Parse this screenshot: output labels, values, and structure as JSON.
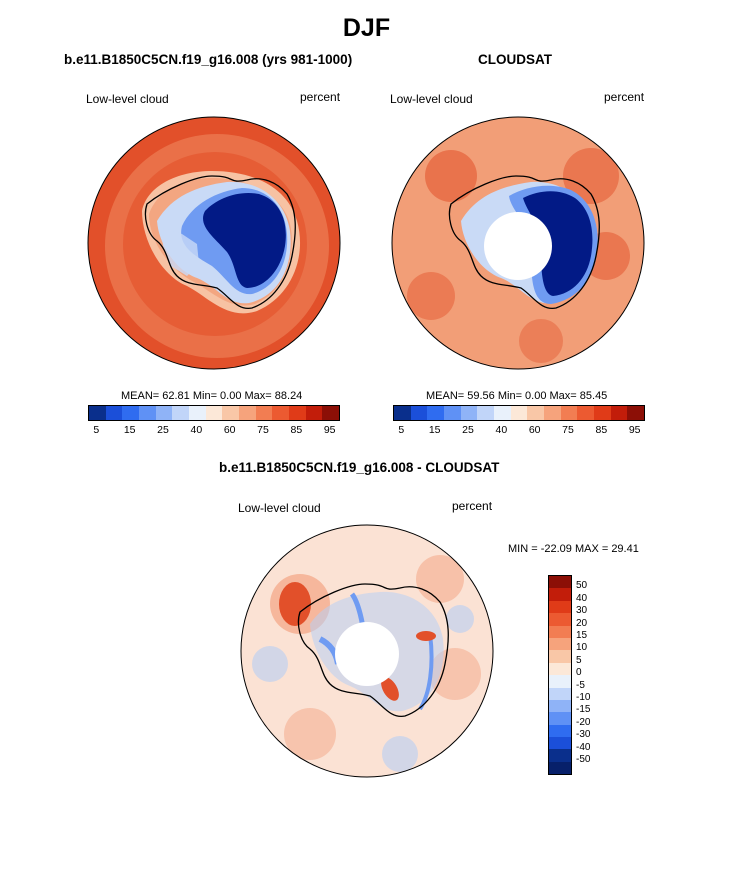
{
  "title": "DJF",
  "plots": [
    {
      "title": "b.e11.B1850C5CN.f19_g16.008 (yrs 981-1000)",
      "variable": "Low-level cloud",
      "units": "percent",
      "stats": "MEAN= 62.81  Min=  0.00  Max= 88.24",
      "colorbar_labels": [
        "5",
        "15",
        "25",
        "40",
        "60",
        "75",
        "85",
        "95"
      ],
      "colorbar_colors": [
        "#0a2f8c",
        "#1b4fd9",
        "#2f6cf0",
        "#5f91f5",
        "#8fb3f7",
        "#c1d5f9",
        "#e9f1fb",
        "#fce8d8",
        "#f9c7a7",
        "#f6a37c",
        "#f27d52",
        "#ec5a31",
        "#e03b18",
        "#c21d0a",
        "#8c0f06"
      ]
    },
    {
      "title": "CLOUDSAT",
      "variable": "Low-level cloud",
      "units": "percent",
      "stats": "MEAN= 59.56  Min=  0.00  Max= 85.45",
      "colorbar_labels": [
        "5",
        "15",
        "25",
        "40",
        "60",
        "75",
        "85",
        "95"
      ],
      "colorbar_colors": [
        "#0a2f8c",
        "#1b4fd9",
        "#2f6cf0",
        "#5f91f5",
        "#8fb3f7",
        "#c1d5f9",
        "#e9f1fb",
        "#fce8d8",
        "#f9c7a7",
        "#f6a37c",
        "#f27d52",
        "#ec5a31",
        "#e03b18",
        "#c21d0a",
        "#8c0f06"
      ]
    },
    {
      "title": "b.e11.B1850C5CN.f19_g16.008 - CLOUDSAT",
      "variable": "Low-level cloud",
      "units": "percent",
      "stats": "MIN = -22.09 MAX =  29.41",
      "colorbar_labels": [
        "50",
        "40",
        "30",
        "20",
        "15",
        "10",
        "5",
        "0",
        "-5",
        "-10",
        "-15",
        "-20",
        "-30",
        "-40",
        "-50"
      ],
      "colorbar_colors": [
        "#8c0f06",
        "#c21d0a",
        "#e03b18",
        "#ec5a31",
        "#f27d52",
        "#f6a37c",
        "#f9c7a7",
        "#fce8d8",
        "#e9f1fb",
        "#c1d5f9",
        "#8fb3f7",
        "#5f91f5",
        "#2f6cf0",
        "#1b4fd9",
        "#0a2f8c",
        "#07206a"
      ]
    }
  ],
  "map_colors": {
    "ocean_high": "#e2502a",
    "ocean_mid": "#f08a60",
    "ocean_light": "#f7c2a3",
    "ice_edge": "#c9daf6",
    "ice_mid": "#6f9bf2",
    "ice_core": "#021a86",
    "missing": "#ffffff",
    "diff_pos": "#f4a585",
    "diff_neg": "#b8cff4",
    "diff_neutral": "#fbe2d4",
    "coast": "#000000"
  }
}
